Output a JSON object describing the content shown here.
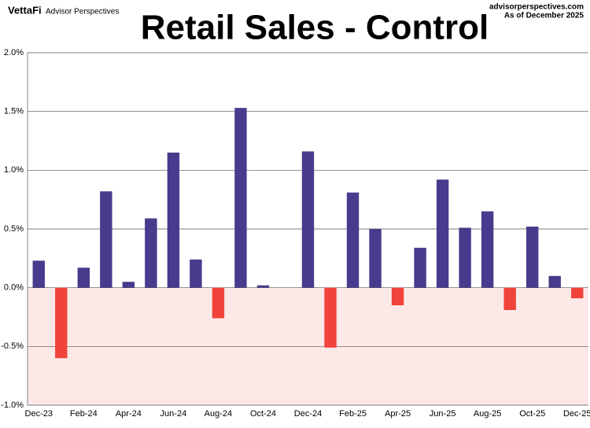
{
  "chart_data": {
    "type": "bar",
    "title": "Retail Sales - Control",
    "brand": "VettaFi",
    "brand_sub": "Advisor Perspectives",
    "source": "advisorperspectives.com",
    "as_of": "As of December 2025",
    "categories": [
      "Dec-23",
      null,
      "Feb-24",
      null,
      "Apr-24",
      null,
      "Jun-24",
      null,
      "Aug-24",
      null,
      "Oct-24",
      null,
      "Dec-24",
      null,
      "Feb-25",
      null,
      "Apr-25",
      null,
      "Jun-25",
      null,
      "Aug-25",
      null,
      "Oct-25",
      null,
      "Dec-25"
    ],
    "values": [
      0.23,
      -0.6,
      0.17,
      0.82,
      0.05,
      0.59,
      1.15,
      0.24,
      -0.26,
      1.53,
      0.02,
      0,
      1.16,
      -0.51,
      0.81,
      0.5,
      -0.15,
      0.34,
      0.92,
      0.51,
      0.65,
      -0.19,
      0.52,
      0.1,
      -0.09
    ],
    "positive_color": "#483a8c",
    "negative_color": "#f0433a",
    "negative_shade": "#fde8e8",
    "ylim": [
      -1.0,
      2.0
    ],
    "yticks": [
      {
        "value": -1.0,
        "label": "-1.0%"
      },
      {
        "value": -0.5,
        "label": "-0.5%"
      },
      {
        "value": 0.0,
        "label": "0.0%"
      },
      {
        "value": 0.5,
        "label": "0.5%"
      },
      {
        "value": 1.0,
        "label": "1.0%"
      },
      {
        "value": 1.5,
        "label": "1.5%"
      },
      {
        "value": 2.0,
        "label": "2.0%"
      }
    ],
    "grid": true
  }
}
